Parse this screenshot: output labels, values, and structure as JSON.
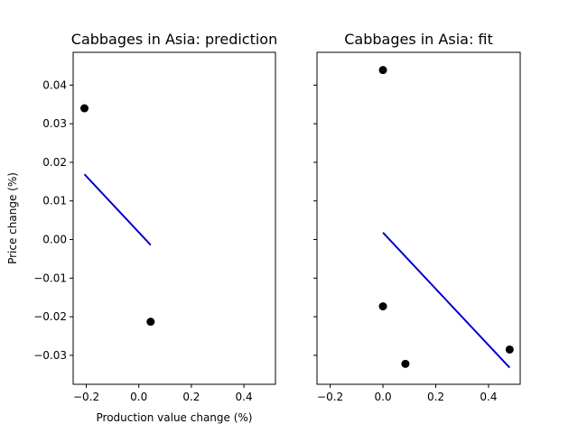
{
  "chart_data": [
    {
      "type": "scatter",
      "title": "Cabbages in Asia: prediction",
      "xlabel": "Production value change (%)",
      "ylabel": "Price change (%)",
      "xlim": [
        -0.25,
        0.52
      ],
      "ylim": [
        -0.0375,
        0.0485
      ],
      "xticks": [
        -0.2,
        0.0,
        0.2,
        0.4
      ],
      "xtick_labels": [
        "−0.2",
        "0.0",
        "0.2",
        "0.4"
      ],
      "yticks": [
        0.04,
        0.03,
        0.02,
        0.01,
        0.0,
        -0.01,
        -0.02,
        -0.03
      ],
      "ytick_labels": [
        "0.04",
        "0.03",
        "0.02",
        "0.01",
        "0.00",
        "−0.01",
        "−0.02",
        "−0.03"
      ],
      "show_yticklabels": true,
      "points": [
        {
          "x": -0.207,
          "y": 0.034
        },
        {
          "x": 0.045,
          "y": -0.0213
        }
      ],
      "line": {
        "x": [
          -0.207,
          0.045
        ],
        "y": [
          0.0169,
          -0.0014
        ]
      },
      "point_color": "#000000",
      "line_color": "#0000cc"
    },
    {
      "type": "scatter",
      "title": "Cabbages in Asia: fit",
      "xlabel": "",
      "ylabel": "",
      "xlim": [
        -0.25,
        0.52
      ],
      "ylim": [
        -0.0375,
        0.0485
      ],
      "xticks": [
        -0.2,
        0.0,
        0.2,
        0.4
      ],
      "xtick_labels": [
        "−0.2",
        "0.0",
        "0.2",
        "0.4"
      ],
      "yticks": [
        0.04,
        0.03,
        0.02,
        0.01,
        0.0,
        -0.01,
        -0.02,
        -0.03
      ],
      "ytick_labels": [
        "",
        "",
        "",
        "",
        "",
        "",
        "",
        ""
      ],
      "show_yticklabels": false,
      "points": [
        {
          "x": 0.0,
          "y": 0.0439
        },
        {
          "x": 0.0,
          "y": -0.0173
        },
        {
          "x": 0.085,
          "y": -0.0322
        },
        {
          "x": 0.48,
          "y": -0.0285
        }
      ],
      "line": {
        "x": [
          0.0,
          0.48
        ],
        "y": [
          0.0018,
          -0.0332
        ]
      },
      "point_color": "#000000",
      "line_color": "#0000cc"
    }
  ]
}
